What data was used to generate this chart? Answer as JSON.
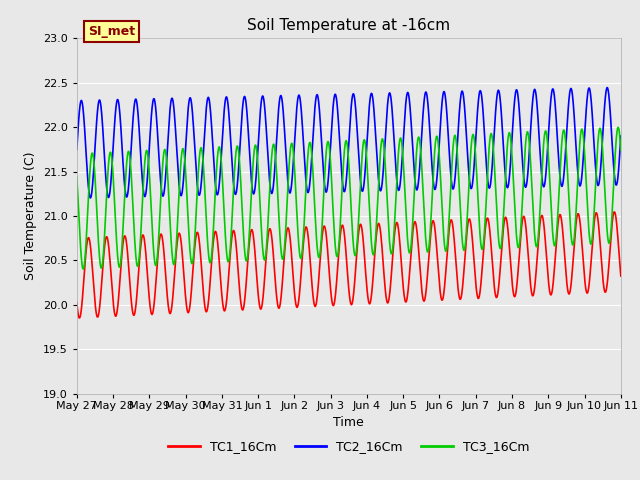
{
  "title": "Soil Temperature at -16cm",
  "xlabel": "Time",
  "ylabel": "Soil Temperature (C)",
  "ylim": [
    19.0,
    23.0
  ],
  "yticks": [
    19.0,
    19.5,
    20.0,
    20.5,
    21.0,
    21.5,
    22.0,
    22.5,
    23.0
  ],
  "n_days": 15,
  "tc1_mean": 20.3,
  "tc1_amp": 0.45,
  "tc1_phase": 3.8,
  "tc2_mean": 21.75,
  "tc2_amp": 0.55,
  "tc2_phase": 0.0,
  "tc3_mean": 21.05,
  "tc3_amp": 0.65,
  "tc3_phase": 2.5,
  "tc1_color": "#ff0000",
  "tc2_color": "#0000ff",
  "tc3_color": "#00cc00",
  "bg_color": "#e8e8e8",
  "fig_bg": "#e8e8e8",
  "legend_labels": [
    "TC1_16Cm",
    "TC2_16Cm",
    "TC3_16Cm"
  ],
  "annotation_text": "SI_met",
  "annotation_bg": "#ffff99",
  "annotation_border": "#8b0000",
  "xtick_labels": [
    "May 27",
    "May 28",
    "May 29",
    "May 30",
    "May 31",
    "Jun 1",
    "Jun 2",
    "Jun 3",
    "Jun 4",
    "Jun 5",
    "Jun 6",
    "Jun 7",
    "Jun 8",
    "Jun 9",
    "Jun 10",
    "Jun 11"
  ],
  "linewidth": 1.2,
  "period_days": 0.5
}
